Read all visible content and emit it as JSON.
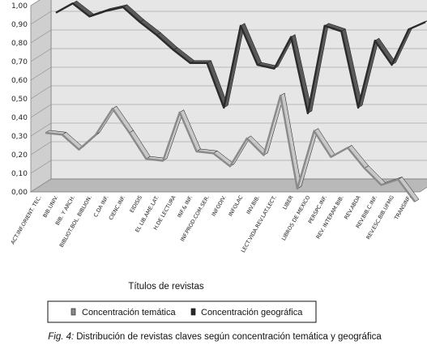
{
  "chart_data": {
    "type": "line",
    "style": "3d-ribbon",
    "xlabel": "Títulos de revistas",
    "ylabel": "",
    "ylim": [
      0,
      1
    ],
    "yticks": [
      "0,00",
      "0,10",
      "0,20",
      "0,30",
      "0,40",
      "0,50",
      "0,60",
      "0,70",
      "0,80",
      "0,90",
      "1,00"
    ],
    "grid": true,
    "legend_position": "bottom",
    "categories": [
      "ACT.INF.ORIENT. TEC.",
      "BIB.UNIV.",
      "BIB. Y ARCH.",
      "BIBLIOT.BOL. BIBLION.",
      "C.DA INF.",
      "CIENC.INF.",
      "EIDISIS",
      "EL LIB.AME.LAT.",
      "H.DE LECTURA",
      "INF.& INF.",
      "INF.PROD.COM.SER.",
      "INFODIV.",
      "INFOLAC",
      "INV.BIB.",
      "LECT.VIDA.REV.LAT.LECT.",
      "LIBER",
      "LIBROS DE MEXICO",
      "PERSPC.INF.",
      "REV. INTERAM.BIB.",
      "REV.ABDA",
      "REV.BIB.C.INF.",
      "REV.ESC.BIB.UFMG",
      "TRANSINF."
    ],
    "series": [
      {
        "name": "Concentración temática",
        "color": "#8a8a8a",
        "values": [
          0.3,
          0.29,
          0.21,
          0.29,
          0.43,
          0.3,
          0.16,
          0.15,
          0.41,
          0.2,
          0.19,
          0.12,
          0.27,
          0.18,
          0.5,
          0.0,
          0.31,
          0.17,
          0.22,
          0.11,
          0.02,
          0.05,
          -0.07
        ]
      },
      {
        "name": "Concentración geográfica",
        "color": "#2b2b2b",
        "values": [
          0.91,
          0.96,
          0.89,
          0.92,
          0.94,
          0.86,
          0.79,
          0.71,
          0.64,
          0.64,
          0.4,
          0.84,
          0.63,
          0.61,
          0.78,
          0.37,
          0.84,
          0.81,
          0.4,
          0.76,
          0.63,
          0.82,
          0.86
        ]
      }
    ]
  },
  "caption": {
    "prefix": "Fig. 4:",
    "text": "Distribución de revistas claves según concentración temática y geográfica"
  }
}
